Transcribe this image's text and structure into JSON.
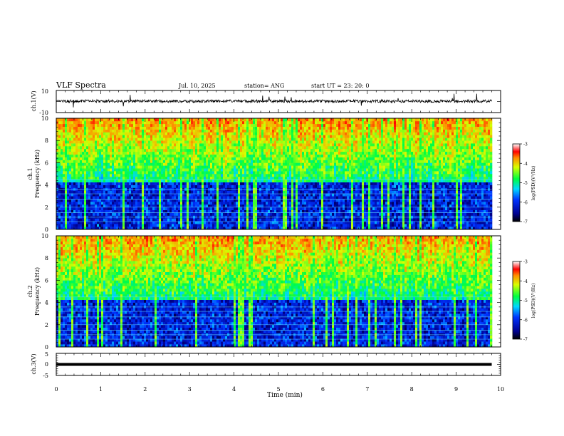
{
  "header": {
    "title": "VLF Spectra",
    "date": "Jul. 10, 2025",
    "station": "station= ANG",
    "start": "start  UT  =   23: 20: 0"
  },
  "chart_data": [
    {
      "type": "line",
      "name": "ch1-waveform",
      "ylabel": "ch.1(V)",
      "ylim": [
        -10,
        10
      ],
      "yticks": [
        "10",
        "-10"
      ],
      "xlim": [
        0,
        10
      ],
      "trace_color": "#000000"
    },
    {
      "type": "heatmap",
      "name": "ch1-spectrogram",
      "ylabel_line1": "ch.1",
      "ylabel_line2": "Frequency  (kHz)",
      "ylim": [
        0,
        10
      ],
      "yticks": [
        "0",
        "2",
        "4",
        "6",
        "8",
        "10"
      ],
      "xlim": [
        0,
        10
      ],
      "data_end_min": 9.8,
      "colorbar": {
        "label": "log(PSD)(V²/Hz)",
        "range": [
          -7,
          -3
        ],
        "ticks": [
          "-3",
          "-4",
          "-5",
          "-6",
          "-7"
        ]
      }
    },
    {
      "type": "heatmap",
      "name": "ch2-spectrogram",
      "ylabel_line1": "ch.2",
      "ylabel_line2": "Frequency  (kHz)",
      "ylim": [
        0,
        10
      ],
      "yticks": [
        "0",
        "2",
        "4",
        "6",
        "8",
        "10"
      ],
      "xlim": [
        0,
        10
      ],
      "data_end_min": 9.8,
      "colorbar": {
        "label": "log(PSD)(V²/Hz)",
        "range": [
          -7,
          -3
        ],
        "ticks": [
          "-3",
          "-4",
          "-5",
          "-6",
          "-7"
        ]
      }
    },
    {
      "type": "line",
      "name": "ch3-level",
      "ylabel": "ch.3(V)",
      "ylim": [
        -5,
        5
      ],
      "yticks": [
        "5",
        "0",
        "-5"
      ],
      "xlim": [
        0,
        10
      ],
      "level_value": 0,
      "xlabel": "Time  (min)",
      "xticks": [
        "0",
        "1",
        "2",
        "3",
        "4",
        "5",
        "6",
        "7",
        "8",
        "9",
        "10"
      ]
    }
  ]
}
